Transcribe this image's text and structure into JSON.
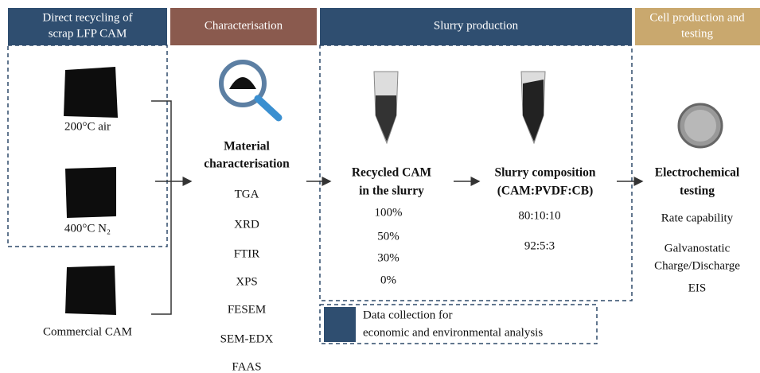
{
  "headers": [
    {
      "lines": [
        "Direct recycling of",
        "scrap LFP CAM"
      ]
    },
    {
      "lines": [
        "Characterisation"
      ]
    },
    {
      "lines": [
        "Slurry production"
      ]
    },
    {
      "lines": [
        "Cell production and",
        "testing"
      ]
    }
  ],
  "samples": [
    "200°C air",
    "400°C N₂",
    "Commercial CAM"
  ],
  "characterisation": {
    "title": [
      "Material",
      "characterisation"
    ],
    "methods": [
      "TGA",
      "XRD",
      "FTIR",
      "XPS",
      "FESEM",
      "SEM-EDX",
      "FAAS"
    ]
  },
  "slurry": {
    "recycled": {
      "title": [
        "Recycled CAM",
        "in the slurry"
      ],
      "items": [
        "100%",
        "50%",
        "30%",
        "0%"
      ]
    },
    "composition": {
      "title": [
        "Slurry composition",
        "(CAM:PVDF:CB)"
      ],
      "items": [
        "80:10:10",
        "92:5:3"
      ]
    }
  },
  "testing": {
    "title": [
      "Electrochemical",
      "testing"
    ],
    "items": [
      "Rate capability",
      "Galvanostatic",
      "Charge/Discharge",
      "EIS"
    ]
  },
  "legend": {
    "lines": [
      "Data collection for",
      "economic and environmental analysis"
    ]
  }
}
